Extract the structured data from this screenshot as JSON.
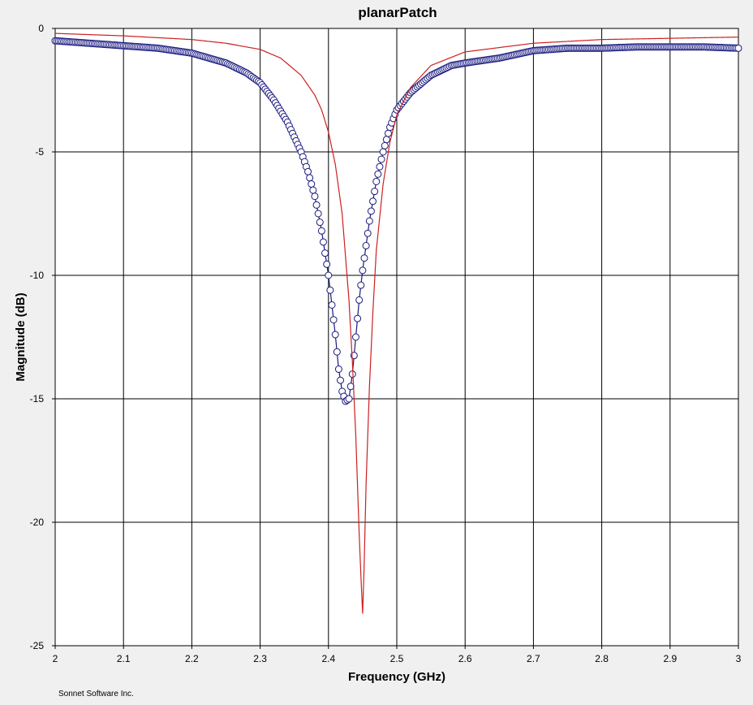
{
  "chart_data": {
    "type": "line",
    "title": "planarPatch",
    "xlabel": "Frequency (GHz)",
    "ylabel": "Magnitude (dB)",
    "xlim": [
      2,
      3
    ],
    "ylim": [
      -25,
      0
    ],
    "x_ticks": [
      "2",
      "2.1",
      "2.2",
      "2.3",
      "2.4",
      "2.5",
      "2.6",
      "2.7",
      "2.8",
      "2.9",
      "3"
    ],
    "y_ticks": [
      "0",
      "-5",
      "-10",
      "-15",
      "-20",
      "-25"
    ],
    "grid": true,
    "series": [
      {
        "style": "line-with-circle-markers",
        "color": "#1a1a80",
        "marker_fill": "#ffffff",
        "x": [
          2.0,
          2.05,
          2.1,
          2.15,
          2.2,
          2.25,
          2.28,
          2.3,
          2.32,
          2.34,
          2.36,
          2.37,
          2.38,
          2.39,
          2.4,
          2.405,
          2.41,
          2.415,
          2.42,
          2.425,
          2.43,
          2.435,
          2.44,
          2.445,
          2.45,
          2.46,
          2.47,
          2.48,
          2.49,
          2.5,
          2.52,
          2.55,
          2.58,
          2.6,
          2.65,
          2.7,
          2.75,
          2.8,
          2.85,
          2.9,
          2.95,
          3.0
        ],
        "y": [
          -0.5,
          -0.6,
          -0.7,
          -0.8,
          -1.0,
          -1.4,
          -1.8,
          -2.2,
          -2.9,
          -3.8,
          -5.0,
          -5.8,
          -6.8,
          -8.2,
          -10.0,
          -11.2,
          -12.4,
          -13.8,
          -14.7,
          -15.1,
          -15.0,
          -14.0,
          -12.5,
          -11.0,
          -9.8,
          -7.8,
          -6.2,
          -5.0,
          -4.0,
          -3.3,
          -2.6,
          -1.9,
          -1.5,
          -1.4,
          -1.2,
          -0.9,
          -0.8,
          -0.8,
          -0.75,
          -0.75,
          -0.75,
          -0.8
        ]
      },
      {
        "style": "line",
        "color": "#cc2020",
        "x": [
          2.0,
          2.1,
          2.2,
          2.25,
          2.3,
          2.33,
          2.36,
          2.38,
          2.39,
          2.4,
          2.41,
          2.42,
          2.43,
          2.435,
          2.44,
          2.445,
          2.448,
          2.45,
          2.452,
          2.455,
          2.46,
          2.465,
          2.47,
          2.48,
          2.49,
          2.5,
          2.52,
          2.55,
          2.6,
          2.7,
          2.8,
          2.9,
          3.0
        ],
        "y": [
          -0.2,
          -0.3,
          -0.45,
          -0.6,
          -0.85,
          -1.2,
          -1.9,
          -2.7,
          -3.3,
          -4.2,
          -5.5,
          -7.5,
          -11.0,
          -13.5,
          -16.5,
          -20.5,
          -22.5,
          -23.7,
          -22.0,
          -18.5,
          -14.5,
          -11.5,
          -9.0,
          -6.3,
          -4.6,
          -3.5,
          -2.4,
          -1.5,
          -0.95,
          -0.6,
          -0.45,
          -0.4,
          -0.35
        ]
      }
    ]
  },
  "footer": {
    "credit": "Sonnet Software Inc."
  },
  "colors": {
    "background": "#f0f0f0",
    "plot_background": "#ffffff",
    "grid": "#000000"
  }
}
